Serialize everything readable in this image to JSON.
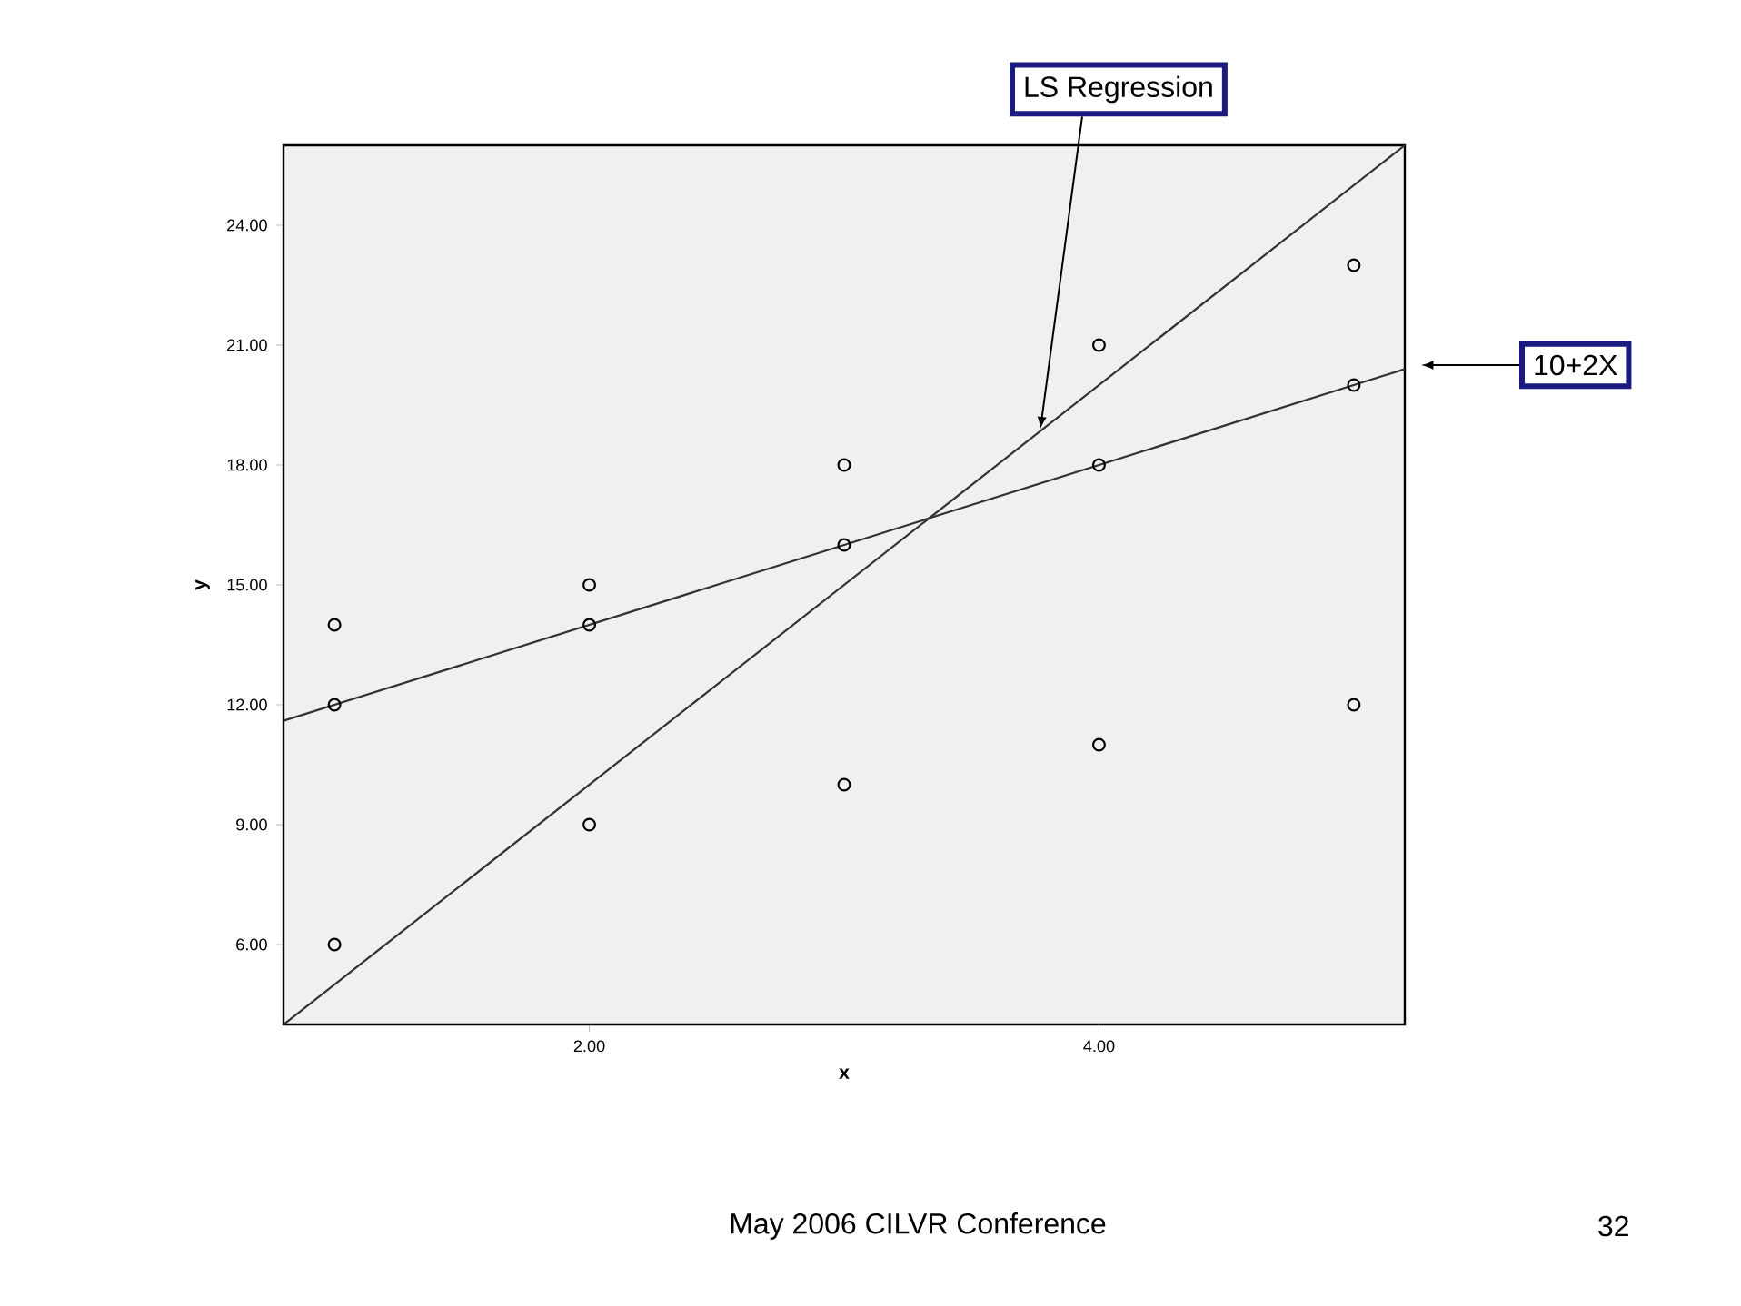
{
  "chart_data": {
    "type": "scatter",
    "xlabel": "x",
    "ylabel": "y",
    "xlim": [
      0.8,
      5.2
    ],
    "ylim": [
      4,
      26
    ],
    "xticks": [
      {
        "value": 2,
        "label": "2.00"
      },
      {
        "value": 4,
        "label": "4.00"
      }
    ],
    "yticks": [
      {
        "value": 6,
        "label": "6.00"
      },
      {
        "value": 9,
        "label": "9.00"
      },
      {
        "value": 12,
        "label": "12.00"
      },
      {
        "value": 15,
        "label": "15.00"
      },
      {
        "value": 18,
        "label": "18.00"
      },
      {
        "value": 21,
        "label": "21.00"
      },
      {
        "value": 24,
        "label": "24.00"
      }
    ],
    "grid": false,
    "series": [
      {
        "marker": "circle",
        "color": "#000000",
        "x": [
          1,
          1,
          1,
          2,
          2,
          2,
          3,
          3,
          3,
          4,
          4,
          4,
          5,
          5,
          5
        ],
        "values": [
          14,
          12,
          6,
          15,
          14,
          9,
          18,
          16,
          10,
          21,
          18,
          11,
          23,
          20,
          12
        ]
      },
      {
        "type": "line",
        "marker": "none",
        "color": "#333333",
        "x": [
          0.8,
          5.2
        ],
        "values": [
          4,
          26
        ]
      },
      {
        "type": "line",
        "marker": "none",
        "color": "#333333",
        "x": [
          0.8,
          5.2
        ],
        "values": [
          11.6,
          20.4
        ]
      }
    ],
    "annotations": [
      {
        "text": "LS Regression",
        "x": 3.77,
        "y": 18.9
      },
      "10+2X",
      "May 2006  CILVR Conference",
      "32"
    ]
  }
}
